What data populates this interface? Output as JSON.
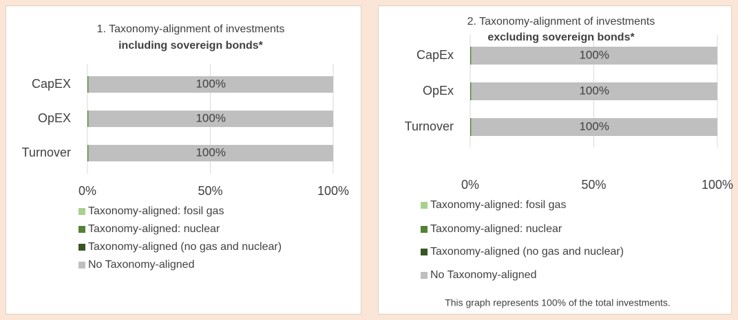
{
  "chart_data": [
    {
      "type": "stacked-bar-horizontal",
      "title": "1. Taxonomy-alignment of investments",
      "subtitle": "including sovereign bonds*",
      "categories": [
        "CapEX",
        "OpEX",
        "Turnover"
      ],
      "series": [
        {
          "name": "Taxonomy-aligned: fosil gas",
          "color": "#a9d18e",
          "values": [
            0,
            0,
            0
          ]
        },
        {
          "name": "Taxonomy-aligned: nuclear",
          "color": "#548235",
          "values": [
            0.4,
            0.4,
            0.4
          ]
        },
        {
          "name": "Taxonomy-aligned (no gas and nuclear)",
          "color": "#375623",
          "values": [
            0,
            0,
            0
          ]
        },
        {
          "name": "No Taxonomy-aligned",
          "color": "#bfbfbf",
          "values": [
            99.6,
            99.6,
            99.6
          ],
          "value_labels": [
            "100%",
            "100%",
            "100%"
          ]
        }
      ],
      "xlim": [
        0,
        100
      ],
      "xticks": [
        {
          "value": 0,
          "label": "0%"
        },
        {
          "value": 50,
          "label": "50%"
        },
        {
          "value": 100,
          "label": "100%"
        }
      ]
    },
    {
      "type": "stacked-bar-horizontal",
      "title": "2. Taxonomy-alignment of investments",
      "subtitle": "excluding sovereign bonds*",
      "categories": [
        "CapEx",
        "OpEx",
        "Turnover"
      ],
      "series": [
        {
          "name": "Taxonomy-aligned: fosil gas",
          "color": "#a9d18e",
          "values": [
            0,
            0,
            0
          ]
        },
        {
          "name": "Taxonomy-aligned: nuclear",
          "color": "#548235",
          "values": [
            0.4,
            0.4,
            0.4
          ]
        },
        {
          "name": "Taxonomy-aligned (no gas and nuclear)",
          "color": "#375623",
          "values": [
            0,
            0,
            0
          ]
        },
        {
          "name": "No Taxonomy-aligned",
          "color": "#bfbfbf",
          "values": [
            99.6,
            99.6,
            99.6
          ],
          "value_labels": [
            "100%",
            "100%",
            "100%"
          ]
        }
      ],
      "xlim": [
        0,
        100
      ],
      "xticks": [
        {
          "value": 0,
          "label": "0%"
        },
        {
          "value": 50,
          "label": "50%"
        },
        {
          "value": 100,
          "label": "100%"
        }
      ],
      "note": "This graph represents 100% of the total investments."
    }
  ]
}
